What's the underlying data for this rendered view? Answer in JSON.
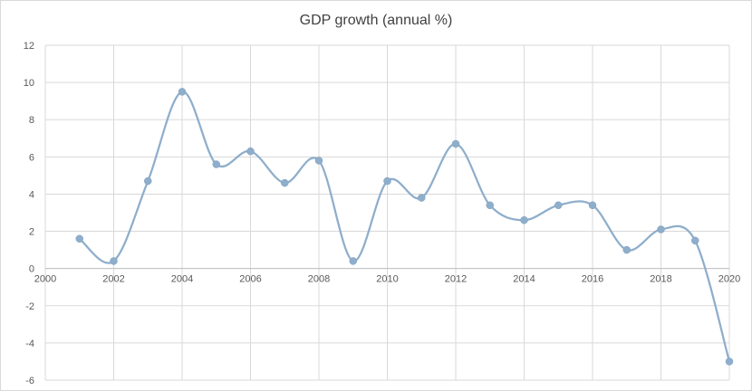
{
  "chart_data": {
    "type": "scatter",
    "title": "GDP growth (annual %)",
    "xlabel": "",
    "ylabel": "",
    "xlim": [
      2000,
      2020
    ],
    "ylim": [
      -6,
      12
    ],
    "x_ticks": [
      "2000",
      "2002",
      "2004",
      "2006",
      "2008",
      "2010",
      "2012",
      "2014",
      "2016",
      "2018",
      "2020"
    ],
    "y_ticks": [
      "12",
      "10",
      "8",
      "6",
      "4",
      "2",
      "0",
      "-2",
      "-4",
      "-6"
    ],
    "grid": true,
    "legend": "none",
    "line_style": "smoothed",
    "series": [
      {
        "color": "#8eaecb",
        "x": [
          2001,
          2002,
          2003,
          2004,
          2005,
          2006,
          2007,
          2008,
          2009,
          2010,
          2011,
          2012,
          2013,
          2014,
          2015,
          2016,
          2017,
          2018,
          2019,
          2020
        ],
        "y": [
          1.6,
          0.4,
          4.7,
          9.5,
          5.6,
          6.3,
          4.6,
          5.8,
          0.4,
          4.7,
          3.8,
          6.7,
          3.4,
          2.6,
          3.4,
          3.4,
          1.0,
          2.1,
          1.5,
          -5.0
        ]
      }
    ]
  }
}
